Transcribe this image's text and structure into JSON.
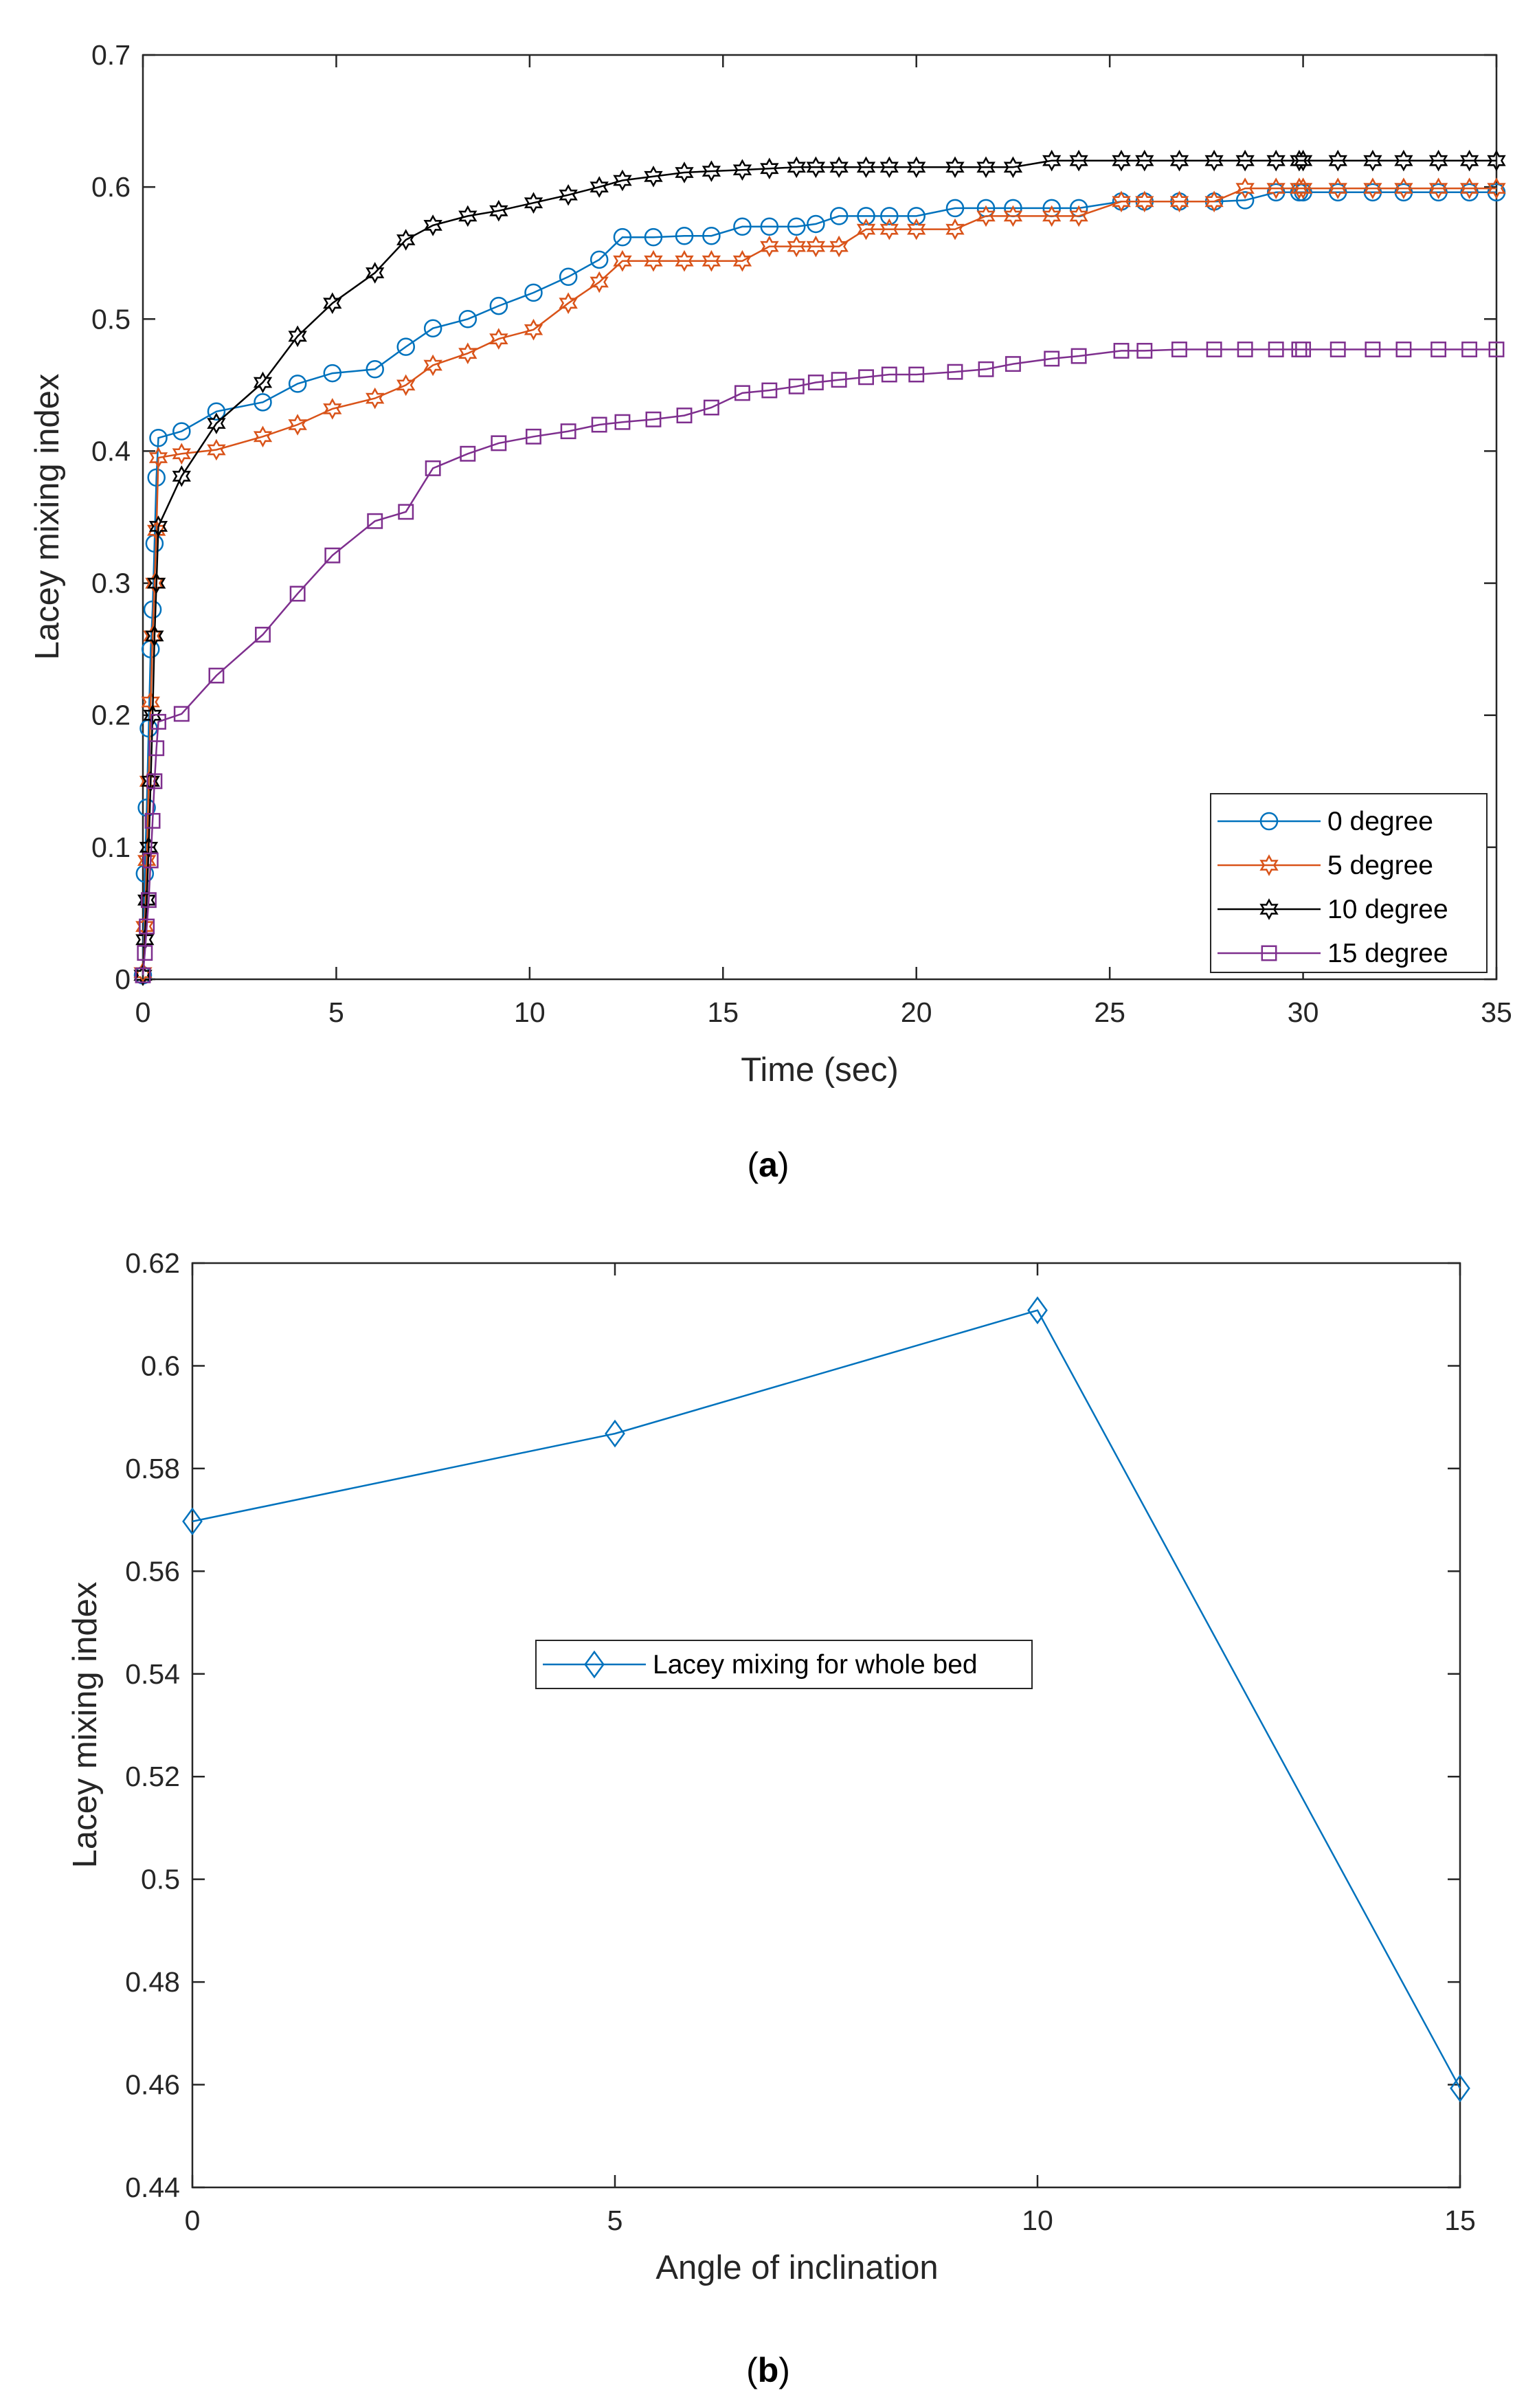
{
  "chart_data": [
    {
      "type": "line",
      "panel": "a",
      "caption_open": "(",
      "caption_letter": "a",
      "caption_close": ")",
      "xlabel": "Time (sec)",
      "ylabel": "Lacey mixing index",
      "xlim": [
        0,
        35
      ],
      "ylim": [
        0,
        0.7
      ],
      "xticks": [
        0,
        5,
        10,
        15,
        20,
        25,
        30,
        35
      ],
      "xtick_labels": [
        "0",
        "5",
        "10",
        "15",
        "20",
        "25",
        "30",
        "35"
      ],
      "yticks": [
        0,
        0.1,
        0.2,
        0.3,
        0.4,
        0.5,
        0.6,
        0.7
      ],
      "ytick_labels": [
        "0",
        "0.1",
        "0.2",
        "0.3",
        "0.4",
        "0.5",
        "0.6",
        "0.7"
      ],
      "grid": false,
      "legend_position": "bottom-right",
      "series": [
        {
          "name": "0 degree",
          "color": "#0072BD",
          "marker": "circle",
          "x": [
            0,
            0.05,
            0.1,
            0.15,
            0.2,
            0.25,
            0.3,
            0.35,
            0.4,
            1.0,
            1.9,
            3.1,
            4.0,
            4.9,
            6.0,
            6.8,
            7.5,
            8.4,
            9.2,
            10.1,
            11.0,
            11.8,
            12.4,
            13.2,
            14.0,
            14.7,
            15.5,
            16.2,
            16.9,
            17.4,
            18.0,
            18.7,
            19.3,
            20.0,
            21.0,
            21.8,
            22.5,
            23.5,
            24.2,
            25.3,
            25.9,
            26.8,
            27.7,
            28.5,
            29.3,
            29.9,
            30.0,
            30.9,
            31.8,
            32.6,
            33.5,
            34.3,
            35.0
          ],
          "y": [
            0.003,
            0.08,
            0.13,
            0.19,
            0.25,
            0.28,
            0.33,
            0.38,
            0.41,
            0.415,
            0.43,
            0.437,
            0.451,
            0.459,
            0.462,
            0.479,
            0.493,
            0.5,
            0.51,
            0.52,
            0.532,
            0.545,
            0.562,
            0.562,
            0.563,
            0.563,
            0.57,
            0.57,
            0.57,
            0.572,
            0.578,
            0.578,
            0.578,
            0.578,
            0.584,
            0.584,
            0.584,
            0.584,
            0.584,
            0.589,
            0.589,
            0.589,
            0.589,
            0.59,
            0.596,
            0.596,
            0.596,
            0.596,
            0.596,
            0.596,
            0.596,
            0.596,
            0.596
          ]
        },
        {
          "name": "5 degree",
          "color": "#D95319",
          "marker": "hexagram",
          "x": [
            0,
            0.05,
            0.1,
            0.15,
            0.2,
            0.25,
            0.3,
            0.35,
            0.4,
            1.0,
            1.9,
            3.1,
            4.0,
            4.9,
            6.0,
            6.8,
            7.5,
            8.4,
            9.2,
            10.1,
            11.0,
            11.8,
            12.4,
            13.2,
            14.0,
            14.7,
            15.5,
            16.2,
            16.9,
            17.4,
            18.0,
            18.7,
            19.3,
            20.0,
            21.0,
            21.8,
            22.5,
            23.5,
            24.2,
            25.3,
            25.9,
            26.8,
            27.7,
            28.5,
            29.3,
            29.9,
            30.0,
            30.9,
            31.8,
            32.6,
            33.5,
            34.3,
            35.0
          ],
          "y": [
            0.005,
            0.04,
            0.09,
            0.15,
            0.21,
            0.26,
            0.3,
            0.34,
            0.395,
            0.398,
            0.401,
            0.411,
            0.42,
            0.432,
            0.44,
            0.45,
            0.465,
            0.474,
            0.485,
            0.492,
            0.512,
            0.528,
            0.544,
            0.544,
            0.544,
            0.544,
            0.544,
            0.555,
            0.555,
            0.555,
            0.555,
            0.568,
            0.568,
            0.568,
            0.568,
            0.578,
            0.578,
            0.578,
            0.578,
            0.589,
            0.589,
            0.589,
            0.589,
            0.599,
            0.599,
            0.599,
            0.599,
            0.599,
            0.599,
            0.599,
            0.599,
            0.599,
            0.599
          ]
        },
        {
          "name": "10 degree",
          "color": "#000000",
          "marker": "hexagram",
          "x": [
            0,
            0.05,
            0.1,
            0.15,
            0.2,
            0.25,
            0.3,
            0.35,
            0.4,
            1.0,
            1.9,
            3.1,
            4.0,
            4.9,
            6.0,
            6.8,
            7.5,
            8.4,
            9.2,
            10.1,
            11.0,
            11.8,
            12.4,
            13.2,
            14.0,
            14.7,
            15.5,
            16.2,
            16.9,
            17.4,
            18.0,
            18.7,
            19.3,
            20.0,
            21.0,
            21.8,
            22.5,
            23.5,
            24.2,
            25.3,
            25.9,
            26.8,
            27.7,
            28.5,
            29.3,
            29.9,
            30.0,
            30.9,
            31.8,
            32.6,
            33.5,
            34.3,
            35.0
          ],
          "y": [
            0.003,
            0.03,
            0.06,
            0.1,
            0.15,
            0.2,
            0.26,
            0.3,
            0.343,
            0.381,
            0.421,
            0.452,
            0.487,
            0.512,
            0.535,
            0.56,
            0.571,
            0.578,
            0.582,
            0.588,
            0.594,
            0.6,
            0.605,
            0.608,
            0.611,
            0.612,
            0.613,
            0.614,
            0.615,
            0.615,
            0.615,
            0.615,
            0.615,
            0.615,
            0.615,
            0.615,
            0.615,
            0.62,
            0.62,
            0.62,
            0.62,
            0.62,
            0.62,
            0.62,
            0.62,
            0.62,
            0.62,
            0.62,
            0.62,
            0.62,
            0.62,
            0.62,
            0.62
          ]
        },
        {
          "name": "15 degree",
          "color": "#7E2F8E",
          "marker": "square",
          "x": [
            0,
            0.05,
            0.1,
            0.15,
            0.2,
            0.25,
            0.3,
            0.35,
            0.4,
            1.0,
            1.9,
            3.1,
            4.0,
            4.9,
            6.0,
            6.8,
            7.5,
            8.4,
            9.2,
            10.1,
            11.0,
            11.8,
            12.4,
            13.2,
            14.0,
            14.7,
            15.5,
            16.2,
            16.9,
            17.4,
            18.0,
            18.7,
            19.3,
            20.0,
            21.0,
            21.8,
            22.5,
            23.5,
            24.2,
            25.3,
            25.9,
            26.8,
            27.7,
            28.5,
            29.3,
            29.9,
            30.0,
            30.9,
            31.8,
            32.6,
            33.5,
            34.3,
            35.0
          ],
          "y": [
            0.003,
            0.02,
            0.04,
            0.06,
            0.09,
            0.12,
            0.15,
            0.175,
            0.195,
            0.201,
            0.23,
            0.261,
            0.292,
            0.321,
            0.347,
            0.354,
            0.387,
            0.398,
            0.406,
            0.411,
            0.415,
            0.42,
            0.422,
            0.424,
            0.427,
            0.433,
            0.444,
            0.446,
            0.449,
            0.452,
            0.454,
            0.456,
            0.458,
            0.458,
            0.46,
            0.462,
            0.466,
            0.47,
            0.472,
            0.476,
            0.476,
            0.477,
            0.477,
            0.477,
            0.477,
            0.477,
            0.477,
            0.477,
            0.477,
            0.477,
            0.477,
            0.477,
            0.477
          ]
        }
      ]
    },
    {
      "type": "line",
      "panel": "b",
      "caption_open": "(",
      "caption_letter": "b",
      "caption_close": ")",
      "xlabel": "Angle of inclination",
      "ylabel": "Lacey mixing index",
      "xlim": [
        0,
        15
      ],
      "ylim": [
        0.44,
        0.62
      ],
      "xticks": [
        0,
        5,
        10,
        15
      ],
      "xtick_labels": [
        "0",
        "5",
        "10",
        "15"
      ],
      "yticks": [
        0.44,
        0.46,
        0.48,
        0.5,
        0.52,
        0.54,
        0.56,
        0.58,
        0.6,
        0.62
      ],
      "ytick_labels": [
        "0.44",
        "0.46",
        "0.48",
        "0.5",
        "0.52",
        "0.54",
        "0.56",
        "0.58",
        "0.6",
        "0.62"
      ],
      "grid": false,
      "legend_position": "center-left",
      "series": [
        {
          "name": "Lacey mixing for whole bed",
          "color": "#0072BD",
          "marker": "diamond",
          "x": [
            0,
            5,
            10,
            15
          ],
          "y": [
            0.5697,
            0.5868,
            0.6108,
            0.4593
          ]
        }
      ]
    }
  ]
}
